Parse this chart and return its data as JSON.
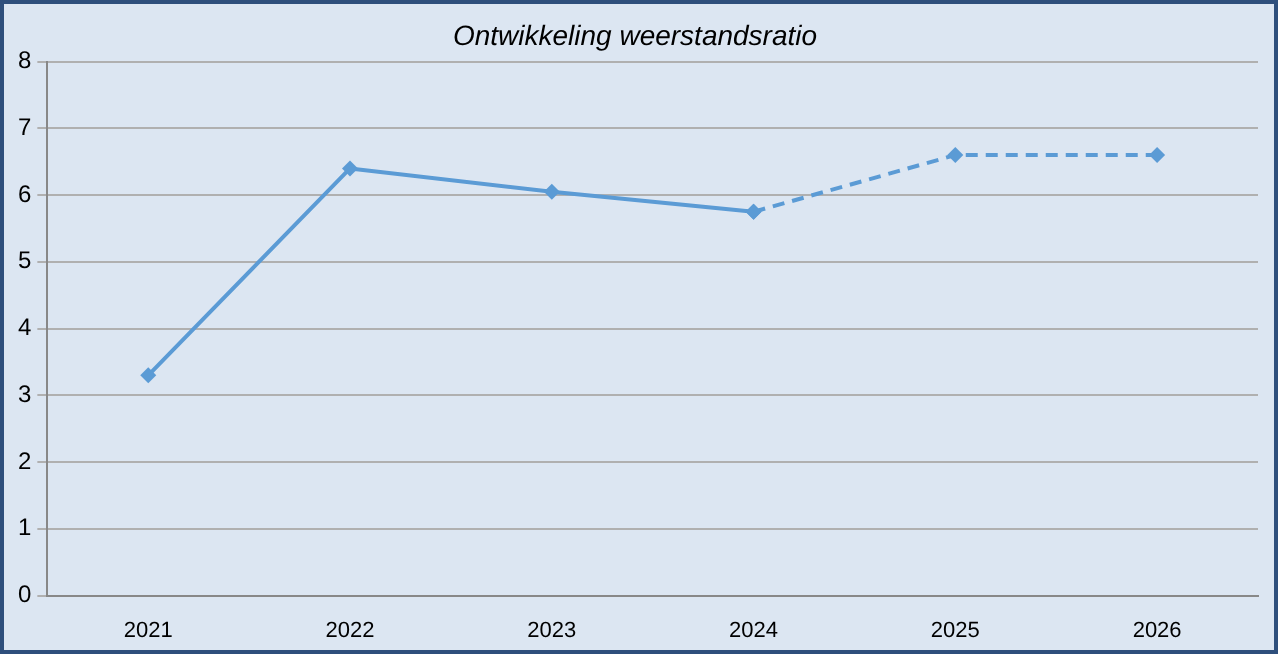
{
  "chart_data": {
    "type": "line",
    "title": "Ontwikkeling weerstandsratio",
    "categories": [
      "2021",
      "2022",
      "2023",
      "2024",
      "2025",
      "2026"
    ],
    "series": [
      {
        "color": "#5b9bd5",
        "line_style": "solid",
        "values": [
          3.3,
          6.4,
          6.05,
          5.75,
          null,
          null
        ]
      },
      {
        "color": "#5b9bd5",
        "line_style": "dashed",
        "values": [
          null,
          null,
          null,
          5.75,
          6.6,
          6.6
        ]
      }
    ],
    "ylim": [
      0,
      8
    ],
    "yticks": [
      0,
      1,
      2,
      3,
      4,
      5,
      6,
      7,
      8
    ],
    "grid": "y",
    "marker": "diamond",
    "legend": false
  }
}
